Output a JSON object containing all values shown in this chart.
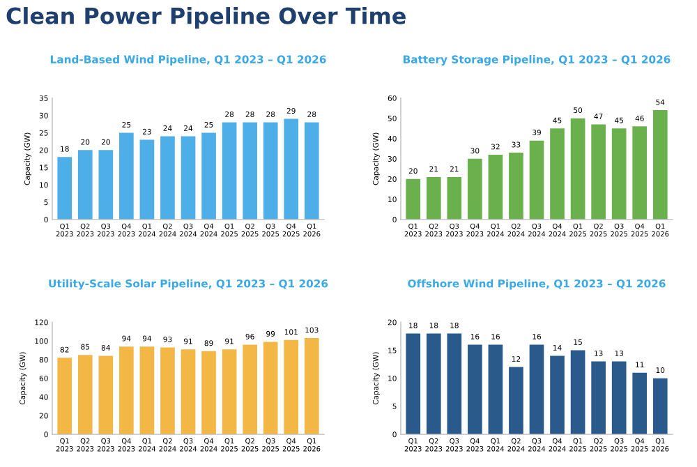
{
  "chart_data": [
    {
      "type": "bar",
      "title": "Land-Based Wind Pipeline, Q1 2023 – Q1 2026",
      "annotations": [
        "Clean Power Pipeline Over Time"
      ],
      "ylabel": "Capacity (GW)",
      "categories": [
        "Q1\n2023",
        "Q2\n2023",
        "Q3\n2023",
        "Q4\n2023",
        "Q1\n2024",
        "Q2\n2024",
        "Q3\n2024",
        "Q4\n2024",
        "Q1\n2025",
        "Q2\n2025",
        "Q3\n2025",
        "Q4\n2025",
        "Q1\n2026"
      ],
      "values": [
        18,
        20,
        20,
        25,
        23,
        24,
        24,
        25,
        28,
        28,
        28,
        29,
        28
      ],
      "color": "#4daee8",
      "ylim": [
        0,
        35
      ],
      "yticks": [
        0,
        5,
        10,
        15,
        20,
        25,
        30,
        35
      ],
      "data_labels": true,
      "grid": false
    },
    {
      "type": "bar",
      "title": "Battery Storage Pipeline, Q1 2023 – Q1 2026",
      "ylabel": "Capacity (GW)",
      "categories": [
        "Q1\n2023",
        "Q2\n2023",
        "Q3\n2023",
        "Q4\n2023",
        "Q1\n2024",
        "Q2\n2024",
        "Q3\n2024",
        "Q4\n2024",
        "Q1\n2025",
        "Q2\n2025",
        "Q3\n2025",
        "Q4\n2025",
        "Q1\n2026"
      ],
      "values": [
        20,
        21,
        21,
        30,
        32,
        33,
        39,
        45,
        50,
        47,
        45,
        46,
        54
      ],
      "color": "#6ab04c",
      "ylim": [
        0,
        60
      ],
      "yticks": [
        0,
        10,
        20,
        30,
        40,
        50,
        60
      ],
      "data_labels": true,
      "grid": false
    },
    {
      "type": "bar",
      "title": "Utility-Scale Solar Pipeline, Q1 2023 – Q1 2026",
      "ylabel": "Capacity (GW)",
      "categories": [
        "Q1\n2023",
        "Q2\n2023",
        "Q3\n2023",
        "Q4\n2023",
        "Q1\n2024",
        "Q2\n2024",
        "Q3\n2024",
        "Q4\n2024",
        "Q1\n2025",
        "Q2\n2025",
        "Q3\n2025",
        "Q4\n2025",
        "Q1\n2026"
      ],
      "values": [
        82,
        85,
        84,
        94,
        94,
        93,
        91,
        89,
        91,
        96,
        99,
        101,
        103
      ],
      "color": "#f2b744",
      "ylim": [
        0,
        120
      ],
      "yticks": [
        0,
        20,
        40,
        60,
        80,
        100,
        120
      ],
      "data_labels": true,
      "grid": false
    },
    {
      "type": "bar",
      "title": "Offshore Wind Pipeline, Q1 2023 – Q1 2026",
      "ylabel": "Capacity (GW)",
      "categories": [
        "Q1\n2023",
        "Q2\n2023",
        "Q3\n2023",
        "Q4\n2023",
        "Q1\n2024",
        "Q2\n2024",
        "Q3\n2024",
        "Q4\n2024",
        "Q1\n2025",
        "Q2\n2025",
        "Q3\n2025",
        "Q4\n2025",
        "Q1\n2026"
      ],
      "values": [
        18,
        18,
        18,
        16,
        16,
        12,
        16,
        14,
        15,
        13,
        13,
        11,
        10
      ],
      "color": "#2a5a8c",
      "ylim": [
        0,
        20
      ],
      "yticks": [
        0,
        5,
        10,
        15,
        20
      ],
      "data_labels": true,
      "grid": false
    }
  ]
}
